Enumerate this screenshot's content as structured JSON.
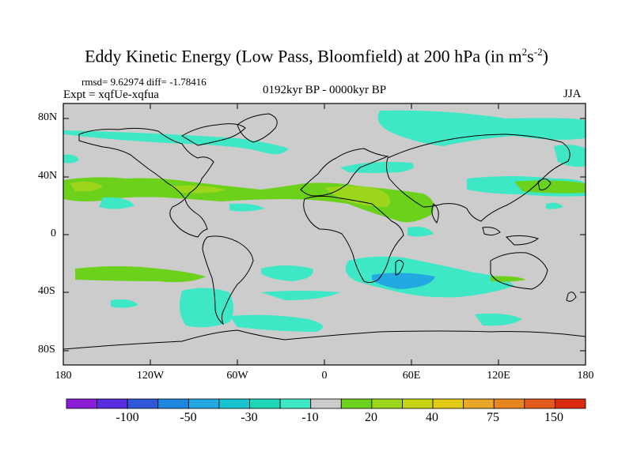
{
  "title": {
    "main": "Eddy Kinetic Energy (Low Pass, Bloomfield) at 200 hPa (in m",
    "sup1": "2",
    "mid": "s",
    "sup2": "-2",
    "end": ")"
  },
  "stats": "rmsd= 9.62974 diff= -1.78416",
  "expt": "Expt = xqfUe-xqfua",
  "period": "0192kyr BP - 0000kyr BP",
  "season": "JJA",
  "y_ticks": [
    "80N",
    "40N",
    "0",
    "40S",
    "80S"
  ],
  "x_ticks": [
    "180",
    "120W",
    "60W",
    "0",
    "60E",
    "120E",
    "180"
  ],
  "colorbar": {
    "labels": [
      "-100",
      "-50",
      "-30",
      "-10",
      "20",
      "40",
      "75",
      "150"
    ],
    "colors": [
      "#8a1cd6",
      "#5a2ce0",
      "#2f57d8",
      "#1f86df",
      "#22a9e2",
      "#19c3d0",
      "#1cd6b6",
      "#3ee8c6",
      "#cccccc",
      "#6bd11a",
      "#9bd61a",
      "#c6d414",
      "#e2cc18",
      "#e9a72a",
      "#e7851e",
      "#e4591c",
      "#dc2a0e"
    ]
  },
  "map_colors": {
    "land_ocean": "#cccccc",
    "cyan_light": "#3ee8c6",
    "cyan_mid": "#1cd6b6",
    "blue_light": "#22a9e2",
    "green": "#6bd11a",
    "yellow_green": "#9bd61a"
  }
}
